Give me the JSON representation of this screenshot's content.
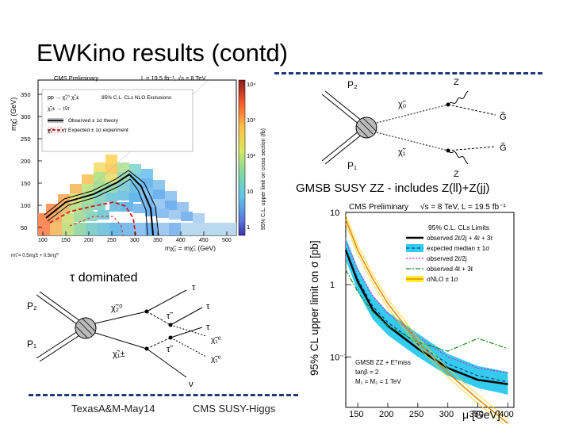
{
  "slide": {
    "title": "EWKino results (contd)",
    "caption_gmsb": "GMSB SUSY ZZ - includes Z(ll)+Z(jj)",
    "caption_tau": "τ dominated",
    "footer_left": "TexasA&M-May14",
    "footer_center": "CMS SUSY-Higgs",
    "accent_color": "#1f3a78"
  },
  "left_plot": {
    "header_left": "CMS Preliminary",
    "header_right": "L = 19.5 fb⁻¹, √s = 8 TeV",
    "process": "pp → χ̃₂⁰ χ̃₁±",
    "exclusion_title": "95% C.L. CLs NLO Exclusions",
    "decay1": "χ̃₁± → τ̃ντ",
    "decay2": "χ̃₂⁰ → τ̃τ",
    "legend_observed": "Observed ± 1σ theory",
    "legend_expected": "Expected ± 1σ experiment",
    "ylabel": "mχ̃₂ (GeV)",
    "xlabel": "mχ̃₁ = mχ̃₂ (GeV)",
    "zlabel": "95% C.L. upper limit on cross section (fb)",
    "y_ticks": [
      "350",
      "300",
      "250",
      "200",
      "150",
      "100",
      "50"
    ],
    "x_ticks": [
      "100",
      "150",
      "200",
      "250",
      "300",
      "350",
      "400",
      "450",
      "500"
    ],
    "z_ticks": [
      "10⁴",
      "10³",
      "10²",
      "10",
      "1"
    ],
    "mass_relation": "mτ̃ = 0.5mχ̃± + 0.5mχ̃⁰"
  },
  "diagram_top": {
    "p2": "P₂",
    "p1": "P₁",
    "chi_top": "χ̃₀",
    "chi_bottom": "χ̃₁",
    "z_top": "Z",
    "z_bottom": "Z",
    "g_top": "G̃",
    "g_bottom": "G̃"
  },
  "diagram_bottom": {
    "p2": "P₂",
    "p1": "P₁",
    "chi2": "χ̃₂⁰",
    "chi1pm": "χ̃₁±",
    "tau_top": "τ",
    "tau_mid": "τ",
    "tau_low": "τ",
    "stau_top": "τ̃",
    "stau_bottom": "τ̃",
    "chi10_top": "χ̃₁⁰",
    "chi10_bottom": "χ̃₁⁰",
    "nu": "ν"
  },
  "chart_data": {
    "type": "line",
    "header_left": "CMS Preliminary",
    "header_right": "√s = 8 TeV, L = 19.5 fb⁻¹",
    "legend_title": "95% C.L. CLs Limits",
    "ylabel": "95% CL upper limit on σ  [pb]",
    "xlabel": "μ  [GeV]",
    "yscale": "log",
    "ylim": [
      0.02,
      10
    ],
    "xlim": [
      130,
      410
    ],
    "x_ticks": [
      "150",
      "200",
      "250",
      "300",
      "350",
      "400"
    ],
    "y_ticks": [
      "10",
      "1",
      "10⁻¹"
    ],
    "annotation": [
      "GMSB  ZZ + Eᵀmiss",
      "tanβ = 2",
      "M₁ = M₂ = 1 TeV"
    ],
    "legend_entries": [
      "observed 2ℓ/2j + 4ℓ + 3ℓ",
      "expected median ± 1σ",
      "observed 2ℓ/2j",
      "observed 4ℓ + 3ℓ",
      "σNLO ± 1σ"
    ],
    "x": [
      130,
      150,
      175,
      200,
      250,
      300,
      350,
      400
    ],
    "series": [
      {
        "name": "observed 2ℓ/2j + 4ℓ + 3ℓ",
        "color": "#000000",
        "values": [
          3.0,
          1.1,
          0.45,
          0.27,
          0.13,
          0.07,
          0.048,
          0.042
        ]
      },
      {
        "name": "expected median",
        "color": "#1a3a8a",
        "values": [
          3.2,
          1.2,
          0.5,
          0.3,
          0.15,
          0.08,
          0.055,
          0.045
        ]
      },
      {
        "name": "observed 2ℓ/2j",
        "color": "#e61fbf",
        "values": [
          4.0,
          1.6,
          0.7,
          0.4,
          0.19,
          0.1,
          0.07,
          0.06
        ]
      },
      {
        "name": "observed 4ℓ + 3ℓ",
        "color": "#1a8a1a",
        "values": [
          1.6,
          0.8,
          0.42,
          0.27,
          0.16,
          0.12,
          0.18,
          0.13
        ]
      },
      {
        "name": "σNLO",
        "color": "#e68a00",
        "values": [
          8.0,
          3.0,
          1.2,
          0.55,
          0.16,
          0.06,
          0.026,
          0.012
        ]
      }
    ],
    "band_1sigma": {
      "name": "expected ± 1σ",
      "color": "#33ccee",
      "lower": [
        2.2,
        0.8,
        0.33,
        0.2,
        0.1,
        0.055,
        0.037,
        0.03
      ],
      "upper": [
        4.5,
        1.7,
        0.7,
        0.42,
        0.21,
        0.11,
        0.075,
        0.062
      ]
    }
  }
}
